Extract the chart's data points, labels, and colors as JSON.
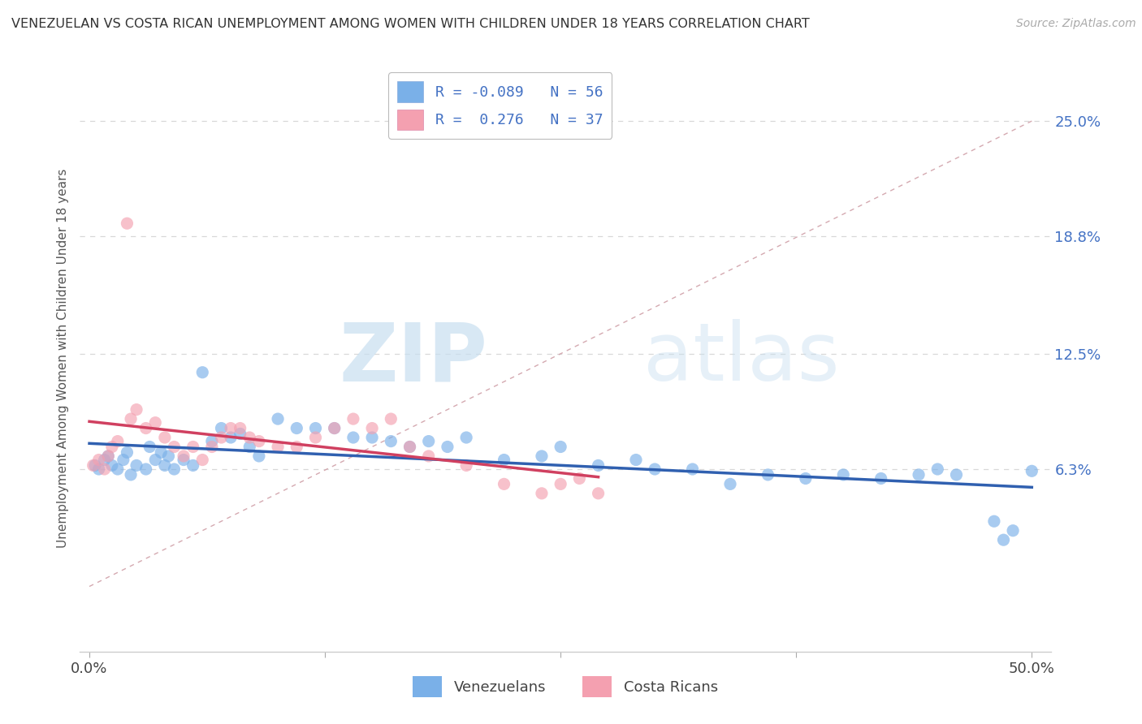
{
  "title": "VENEZUELAN VS COSTA RICAN UNEMPLOYMENT AMONG WOMEN WITH CHILDREN UNDER 18 YEARS CORRELATION CHART",
  "source": "Source: ZipAtlas.com",
  "ylabel": "Unemployment Among Women with Children Under 18 years",
  "xlim": [
    -0.5,
    51.0
  ],
  "ylim": [
    -3.5,
    28.0
  ],
  "xticks": [
    0.0,
    12.5,
    25.0,
    37.5,
    50.0
  ],
  "xticklabels": [
    "0.0%",
    "",
    "",
    "",
    "50.0%"
  ],
  "ytick_right_values": [
    6.3,
    12.5,
    18.8,
    25.0
  ],
  "ytick_right_labels": [
    "6.3%",
    "12.5%",
    "18.8%",
    "25.0%"
  ],
  "venezuelan_color": "#7ab0e8",
  "costarican_color": "#f4a0b0",
  "venezuelan_line_color": "#3060b0",
  "costarican_line_color": "#d04060",
  "ref_line_color": "#d0a0a8",
  "venezuelan_R": -0.089,
  "venezuelan_N": 56,
  "costarican_R": 0.276,
  "costarican_N": 37,
  "legend_label_1": "Venezuelans",
  "legend_label_2": "Costa Ricans",
  "watermark_zip": "ZIP",
  "watermark_atlas": "atlas",
  "background_color": "#ffffff",
  "ven_x": [
    0.3,
    0.5,
    0.8,
    1.0,
    1.2,
    1.5,
    1.8,
    2.0,
    2.2,
    2.5,
    3.0,
    3.2,
    3.5,
    3.8,
    4.0,
    4.2,
    4.5,
    5.0,
    5.5,
    6.0,
    6.5,
    7.0,
    7.5,
    8.0,
    8.5,
    9.0,
    10.0,
    11.0,
    12.0,
    13.0,
    14.0,
    15.0,
    16.0,
    17.0,
    18.0,
    19.0,
    20.0,
    22.0,
    24.0,
    25.0,
    27.0,
    29.0,
    30.0,
    32.0,
    34.0,
    36.0,
    38.0,
    40.0,
    42.0,
    44.0,
    45.0,
    46.0,
    48.0,
    48.5,
    49.0,
    50.0
  ],
  "ven_y": [
    6.5,
    6.3,
    6.8,
    7.0,
    6.5,
    6.3,
    6.8,
    7.2,
    6.0,
    6.5,
    6.3,
    7.5,
    6.8,
    7.2,
    6.5,
    7.0,
    6.3,
    6.8,
    6.5,
    11.5,
    7.8,
    8.5,
    8.0,
    8.2,
    7.5,
    7.0,
    9.0,
    8.5,
    8.5,
    8.5,
    8.0,
    8.0,
    7.8,
    7.5,
    7.8,
    7.5,
    8.0,
    6.8,
    7.0,
    7.5,
    6.5,
    6.8,
    6.3,
    6.3,
    5.5,
    6.0,
    5.8,
    6.0,
    5.8,
    6.0,
    6.3,
    6.0,
    3.5,
    2.5,
    3.0,
    6.2
  ],
  "cr_x": [
    0.2,
    0.5,
    0.8,
    1.0,
    1.2,
    1.5,
    2.0,
    2.2,
    2.5,
    3.0,
    3.5,
    4.0,
    4.5,
    5.0,
    5.5,
    6.0,
    6.5,
    7.0,
    7.5,
    8.0,
    8.5,
    9.0,
    10.0,
    11.0,
    12.0,
    13.0,
    14.0,
    15.0,
    16.0,
    17.0,
    18.0,
    20.0,
    22.0,
    24.0,
    25.0,
    26.0,
    27.0
  ],
  "cr_y": [
    6.5,
    6.8,
    6.3,
    7.0,
    7.5,
    7.8,
    19.5,
    9.0,
    9.5,
    8.5,
    8.8,
    8.0,
    7.5,
    7.0,
    7.5,
    6.8,
    7.5,
    8.0,
    8.5,
    8.5,
    8.0,
    7.8,
    7.5,
    7.5,
    8.0,
    8.5,
    9.0,
    8.5,
    9.0,
    7.5,
    7.0,
    6.5,
    5.5,
    5.0,
    5.5,
    5.8,
    5.0
  ],
  "grid_color": "#d8d8d8",
  "border_color": "#cccccc"
}
